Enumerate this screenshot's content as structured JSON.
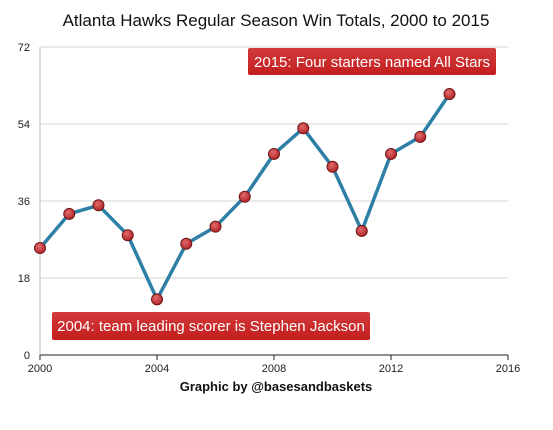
{
  "chart_data": {
    "type": "line",
    "title": "Atlanta Hawks Regular Season Win Totals, 2000 to 2015",
    "xlabel": "",
    "ylabel": "",
    "x": [
      2000,
      2001,
      2002,
      2003,
      2004,
      2005,
      2006,
      2007,
      2008,
      2009,
      2010,
      2011,
      2012,
      2013,
      2014
    ],
    "series": [
      {
        "values": [
          25,
          33,
          35,
          28,
          13,
          26,
          30,
          37,
          47,
          53,
          44,
          29,
          47,
          51,
          61
        ]
      }
    ],
    "xlim": [
      2000,
      2016
    ],
    "ylim": [
      0,
      72
    ],
    "x_ticks": [
      "2000",
      "2004",
      "2008",
      "2012",
      "2016"
    ],
    "y_ticks": [
      "0",
      "18",
      "36",
      "54",
      "72"
    ],
    "grid": "horizontal",
    "line_color": "#2e7fa6",
    "marker_color": "#b3262b",
    "annotations": [
      {
        "text": "2015: Four starters named All Stars",
        "color": "#c41e1e"
      },
      {
        "text": "2004: team leading scorer is Stephen Jackson",
        "color": "#c41e1e"
      }
    ]
  },
  "credit": "Graphic by @basesandbaskets"
}
